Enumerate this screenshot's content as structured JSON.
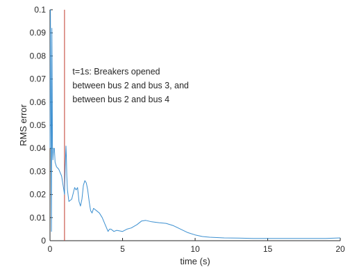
{
  "chart_data": {
    "type": "line",
    "title": "",
    "xlabel": "time (s)",
    "ylabel": "RMS error",
    "xlim": [
      0,
      20
    ],
    "ylim": [
      0,
      0.1
    ],
    "xticks": [
      0,
      5,
      10,
      15,
      20
    ],
    "yticks": [
      0,
      0.01,
      0.02,
      0.03,
      0.04,
      0.05,
      0.06,
      0.07,
      0.08,
      0.09,
      0.1
    ],
    "grid": false,
    "series": [
      {
        "color": "#3b8fd0",
        "x": [
          0,
          0.03,
          0.06,
          0.1,
          0.13,
          0.17,
          0.2,
          0.25,
          0.3,
          0.35,
          0.45,
          0.6,
          0.8,
          0.95,
          1.0,
          1.05,
          1.1,
          1.13,
          1.16,
          1.2,
          1.3,
          1.5,
          1.7,
          1.8,
          1.9,
          2.0,
          2.1,
          2.2,
          2.3,
          2.4,
          2.5,
          2.6,
          2.7,
          2.8,
          2.9,
          3.0,
          3.2,
          3.4,
          3.6,
          3.8,
          4.0,
          4.1,
          4.2,
          4.4,
          4.6,
          5.0,
          5.3,
          5.6,
          6.0,
          6.3,
          6.6,
          7.0,
          7.5,
          8.0,
          8.5,
          9.0,
          9.5,
          10.0,
          10.5,
          11.0,
          12.0,
          13.0,
          14.0,
          15.0,
          16.0,
          17.0,
          18.0,
          19.0,
          20.0
        ],
        "y": [
          0.04,
          0.1,
          0.058,
          0.004,
          0.092,
          0.041,
          0.035,
          0.04,
          0.04,
          0.034,
          0.032,
          0.031,
          0.028,
          0.022,
          0.02,
          0.032,
          0.041,
          0.036,
          0.028,
          0.022,
          0.017,
          0.018,
          0.023,
          0.022,
          0.023,
          0.017,
          0.015,
          0.018,
          0.024,
          0.026,
          0.025,
          0.022,
          0.017,
          0.013,
          0.012,
          0.014,
          0.013,
          0.012,
          0.01,
          0.007,
          0.004,
          0.005,
          0.005,
          0.004,
          0.0045,
          0.004,
          0.005,
          0.0055,
          0.007,
          0.0085,
          0.0088,
          0.0082,
          0.0078,
          0.0075,
          0.0065,
          0.005,
          0.0035,
          0.0025,
          0.0018,
          0.0015,
          0.0012,
          0.0011,
          0.001,
          0.001,
          0.001,
          0.001,
          0.001,
          0.001,
          0.0012
        ]
      }
    ],
    "vline": {
      "x": 1.0,
      "color": "#c0392b"
    },
    "annotation": {
      "x": 1.55,
      "y": 0.072,
      "lines": [
        "t=1s: Breakers opened",
        "between bus 2 and bus 3, and",
        "between bus 2 and bus 4"
      ]
    }
  }
}
